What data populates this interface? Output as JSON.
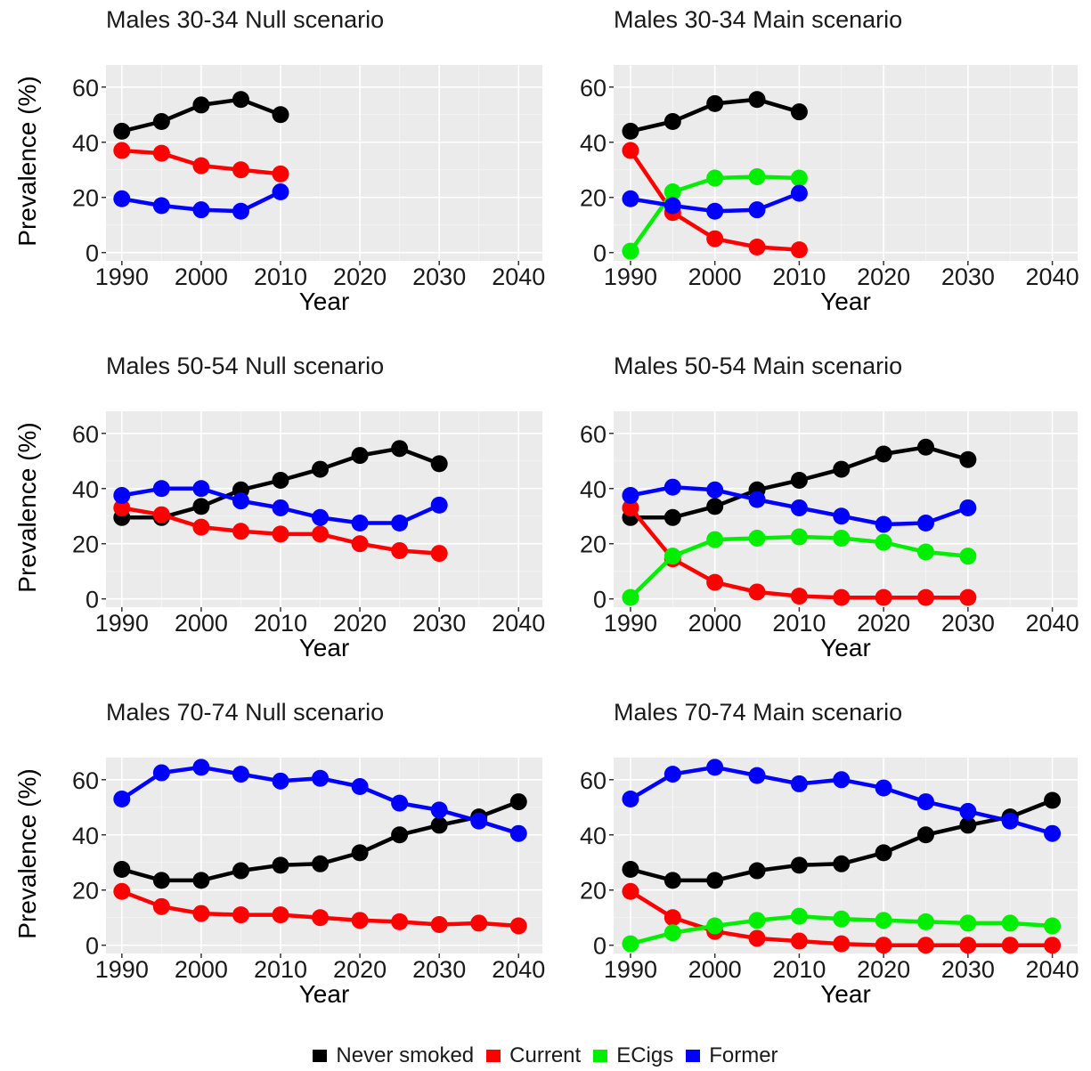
{
  "colors": {
    "Never smoked": "#000000",
    "Current": "#ff0000",
    "ECigs": "#00ee00",
    "Former": "#0000ff"
  },
  "legend": {
    "items": [
      "Never smoked",
      "Current",
      "ECigs",
      "Former"
    ]
  },
  "chart_data": [
    {
      "type": "line",
      "title": "Males 30-34 Null  scenario",
      "xlabel": "Year",
      "ylabel": "Prevalence (%)",
      "xlim": [
        1988,
        2043
      ],
      "ylim": [
        -3,
        68
      ],
      "xticks": [
        1990,
        2000,
        2010,
        2020,
        2030,
        2040
      ],
      "yticks": [
        0,
        20,
        40,
        60
      ],
      "grid": true,
      "x": [
        1990,
        1995,
        2000,
        2005,
        2010
      ],
      "series": [
        {
          "name": "Never smoked",
          "values": [
            44,
            47.5,
            53.5,
            55.5,
            50
          ]
        },
        {
          "name": "Current",
          "values": [
            37,
            36,
            31.5,
            30,
            28.5
          ]
        },
        {
          "name": "Former",
          "values": [
            19.5,
            17,
            15.5,
            15,
            22
          ]
        }
      ]
    },
    {
      "type": "line",
      "title": "Males 30-34 Main  scenario",
      "xlabel": "Year",
      "ylabel": "",
      "xlim": [
        1988,
        2043
      ],
      "ylim": [
        -3,
        68
      ],
      "xticks": [
        1990,
        2000,
        2010,
        2020,
        2030,
        2040
      ],
      "yticks": [
        0,
        20,
        40,
        60
      ],
      "grid": true,
      "x": [
        1990,
        1995,
        2000,
        2005,
        2010
      ],
      "series": [
        {
          "name": "Never smoked",
          "values": [
            44,
            47.5,
            54,
            55.5,
            51
          ]
        },
        {
          "name": "Current",
          "values": [
            37,
            14.5,
            5,
            2,
            1
          ]
        },
        {
          "name": "ECigs",
          "values": [
            0.5,
            22,
            27,
            27.5,
            27
          ]
        },
        {
          "name": "Former",
          "values": [
            19.5,
            17,
            15,
            15.5,
            21.5
          ]
        }
      ]
    },
    {
      "type": "line",
      "title": "Males 50-54 Null  scenario",
      "xlabel": "Year",
      "ylabel": "Prevalence (%)",
      "xlim": [
        1988,
        2043
      ],
      "ylim": [
        -3,
        68
      ],
      "xticks": [
        1990,
        2000,
        2010,
        2020,
        2030,
        2040
      ],
      "yticks": [
        0,
        20,
        40,
        60
      ],
      "grid": true,
      "x": [
        1990,
        1995,
        2000,
        2005,
        2010,
        2015,
        2020,
        2025,
        2030
      ],
      "series": [
        {
          "name": "Never smoked",
          "values": [
            29.5,
            29.5,
            33.5,
            39.5,
            43,
            47,
            52,
            54.5,
            49
          ]
        },
        {
          "name": "Current",
          "values": [
            33,
            30.5,
            26,
            24.5,
            23.5,
            23.5,
            20,
            17.5,
            16.5
          ]
        },
        {
          "name": "Former",
          "values": [
            37.5,
            40,
            40,
            35.5,
            33,
            29.5,
            27.5,
            27.5,
            34
          ]
        }
      ]
    },
    {
      "type": "line",
      "title": "Males 50-54 Main  scenario",
      "xlabel": "Year",
      "ylabel": "",
      "xlim": [
        1988,
        2043
      ],
      "ylim": [
        -3,
        68
      ],
      "xticks": [
        1990,
        2000,
        2010,
        2020,
        2030,
        2040
      ],
      "yticks": [
        0,
        20,
        40,
        60
      ],
      "grid": true,
      "x": [
        1990,
        1995,
        2000,
        2005,
        2010,
        2015,
        2020,
        2025,
        2030
      ],
      "series": [
        {
          "name": "Never smoked",
          "values": [
            29.5,
            29.5,
            33.5,
            39.5,
            43,
            47,
            52.5,
            55,
            50.5
          ]
        },
        {
          "name": "Current",
          "values": [
            33,
            14.5,
            6,
            2.5,
            1,
            0.5,
            0.5,
            0.5,
            0.5
          ]
        },
        {
          "name": "ECigs",
          "values": [
            0.5,
            15.5,
            21.5,
            22,
            22.5,
            22,
            20.5,
            17,
            15.5
          ]
        },
        {
          "name": "Former",
          "values": [
            37.5,
            40.5,
            39.5,
            36,
            33,
            30,
            27,
            27.5,
            33
          ]
        }
      ]
    },
    {
      "type": "line",
      "title": "Males 70-74 Null  scenario",
      "xlabel": "Year",
      "ylabel": "Prevalence (%)",
      "xlim": [
        1988,
        2043
      ],
      "ylim": [
        -3,
        68
      ],
      "xticks": [
        1990,
        2000,
        2010,
        2020,
        2030,
        2040
      ],
      "yticks": [
        0,
        20,
        40,
        60
      ],
      "grid": true,
      "x": [
        1990,
        1995,
        2000,
        2005,
        2010,
        2015,
        2020,
        2025,
        2030,
        2035,
        2040
      ],
      "series": [
        {
          "name": "Never smoked",
          "values": [
            27.5,
            23.5,
            23.5,
            27,
            29,
            29.5,
            33.5,
            40,
            43.5,
            46.5,
            52
          ]
        },
        {
          "name": "Current",
          "values": [
            19.5,
            14,
            11.5,
            11,
            11,
            10,
            9,
            8.5,
            7.5,
            8,
            7
          ]
        },
        {
          "name": "Former",
          "values": [
            53,
            62.5,
            64.5,
            62,
            59.5,
            60.5,
            57.5,
            51.5,
            49,
            45,
            40.5
          ]
        }
      ]
    },
    {
      "type": "line",
      "title": "Males 70-74 Main  scenario",
      "xlabel": "Year",
      "ylabel": "",
      "xlim": [
        1988,
        2043
      ],
      "ylim": [
        -3,
        68
      ],
      "xticks": [
        1990,
        2000,
        2010,
        2020,
        2030,
        2040
      ],
      "yticks": [
        0,
        20,
        40,
        60
      ],
      "grid": true,
      "x": [
        1990,
        1995,
        2000,
        2005,
        2010,
        2015,
        2020,
        2025,
        2030,
        2035,
        2040
      ],
      "series": [
        {
          "name": "Never smoked",
          "values": [
            27.5,
            23.5,
            23.5,
            27,
            29,
            29.5,
            33.5,
            40,
            43.5,
            46.5,
            52.5
          ]
        },
        {
          "name": "Current",
          "values": [
            19.5,
            10,
            5,
            2.5,
            1.5,
            0.5,
            0,
            0,
            0,
            0,
            0
          ]
        },
        {
          "name": "ECigs",
          "values": [
            0.5,
            4.5,
            7,
            9,
            10.5,
            9.5,
            9,
            8.5,
            8,
            8,
            7
          ]
        },
        {
          "name": "Former",
          "values": [
            53,
            62,
            64.5,
            61.5,
            58.5,
            60,
            57,
            52,
            48.5,
            45,
            40.5
          ]
        }
      ]
    }
  ]
}
